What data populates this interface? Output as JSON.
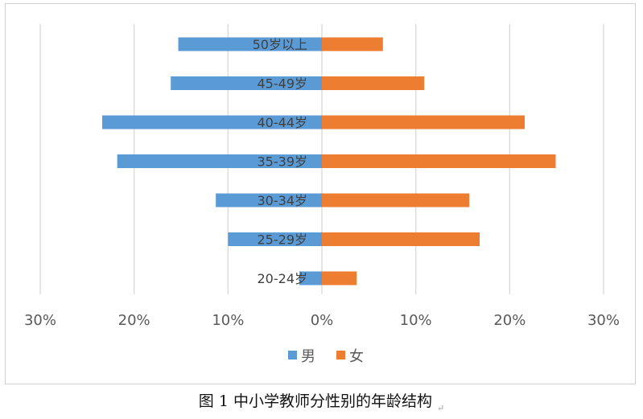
{
  "chart_data": {
    "type": "bar",
    "orientation": "horizontal",
    "layout": "diverging",
    "categories": [
      "50岁以上",
      "45-49岁",
      "40-44岁",
      "35-39岁",
      "30-34岁",
      "25-29岁",
      "20-24岁"
    ],
    "series": [
      {
        "name": "男",
        "values": [
          15.3,
          16.1,
          23.4,
          21.8,
          11.3,
          10.0,
          2.4
        ],
        "color": "#5b9bd5",
        "direction": "left"
      },
      {
        "name": "女",
        "values": [
          6.5,
          10.9,
          21.6,
          24.9,
          15.7,
          16.8,
          3.7
        ],
        "color": "#ed7d31",
        "direction": "right"
      }
    ],
    "x_ticks": [
      "30%",
      "20%",
      "10%",
      "0%",
      "10%",
      "20%",
      "30%"
    ],
    "xlim": [
      -30,
      30
    ],
    "unit": "%",
    "grid": "vertical",
    "legend_position": "bottom",
    "category_label_position": "center-axis"
  },
  "caption": {
    "text": "图 1  中小学教师分性别的年龄结构",
    "mark": "↵"
  },
  "colors": {
    "gridline": "#d9d9d9",
    "axis_text": "#595959",
    "category_text": "#404040"
  }
}
